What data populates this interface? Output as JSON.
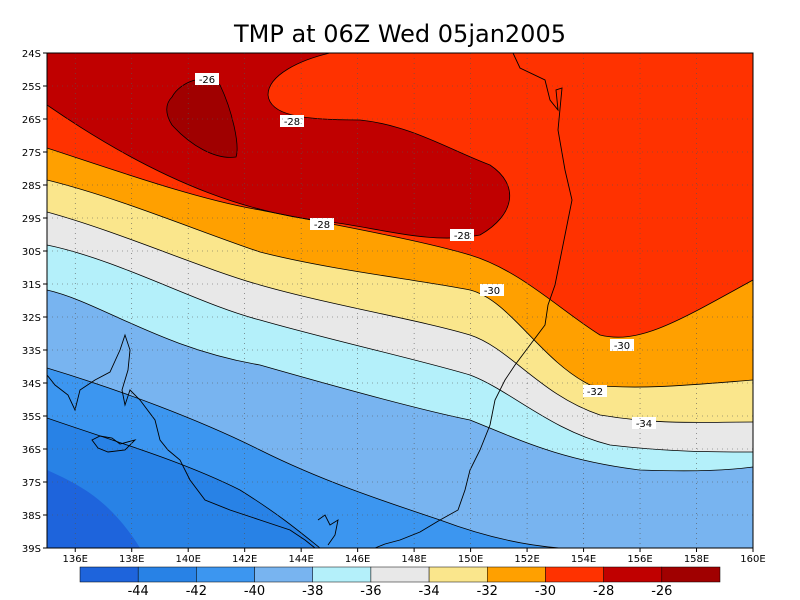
{
  "title": "TMP at 06Z Wed 05jan2005",
  "map": {
    "lon_range": [
      135,
      160
    ],
    "lat_range": [
      -39,
      -24
    ],
    "x_ticks": [
      "136E",
      "138E",
      "140E",
      "142E",
      "144E",
      "146E",
      "148E",
      "150E",
      "152E",
      "154E",
      "156E",
      "158E",
      "160E"
    ],
    "y_ticks": [
      "24S",
      "25S",
      "26S",
      "27S",
      "28S",
      "29S",
      "30S",
      "31S",
      "32S",
      "33S",
      "34S",
      "35S",
      "36S",
      "37S",
      "38S",
      "39S"
    ],
    "grid": "dotted"
  },
  "contour_labels": [
    "-26",
    "-28",
    "-28",
    "-28",
    "-30",
    "-30",
    "-32",
    "-34"
  ],
  "colorbar": {
    "labels": [
      "-44",
      "-42",
      "-40",
      "-38",
      "-36",
      "-34",
      "-32",
      "-30",
      "-28",
      "-26"
    ],
    "colors": [
      "#1e64dc",
      "#2882e6",
      "#3c96f0",
      "#78b4f0",
      "#b4f0fa",
      "#e8e8e8",
      "#fae68c",
      "#ffa000",
      "#ff3200",
      "#c00000",
      "#a00000"
    ]
  },
  "field_colors": {
    "c44": "#1e64dc",
    "c42": "#2882e6",
    "c40": "#3c96f0",
    "c38": "#78b4f0",
    "c36": "#b4f0fa",
    "c34": "#e8e8e8",
    "c32": "#fae68c",
    "c30": "#ffa000",
    "c28": "#ff3200",
    "c26": "#c00000",
    "c24": "#a00000"
  }
}
